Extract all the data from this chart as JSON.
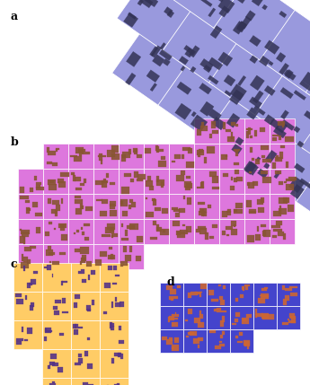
{
  "bg_color": "#ffffff",
  "label_a": "a",
  "label_b": "b",
  "label_c": "c",
  "label_d": "d",
  "label_fontsize": 9,
  "label_fontweight": "bold",
  "color_a_bg": "#9999dd",
  "color_a_bld": "#333355",
  "color_b_bg": "#dd77dd",
  "color_b_bld": "#885533",
  "color_c_bg": "#ffcc66",
  "color_c_bld": "#553388",
  "color_d_bg": "#4444cc",
  "color_d_bld": "#cc6633",
  "tile_line_color": "white",
  "tile_lw": 0.5
}
